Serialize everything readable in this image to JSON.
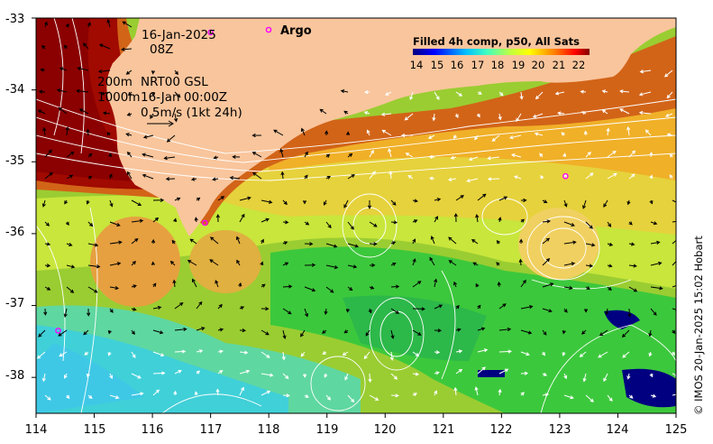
{
  "map": {
    "date": "16-Jan-2025",
    "time": "08Z",
    "depth_label": "200m",
    "depth2_label": "1000m",
    "product": "NRT00 GSL",
    "product_date": "16-Jan 00:00Z",
    "scale_label": "0.5m/s (1kt 24h)",
    "argo_label": "Argo",
    "credit": "© IMOS 20-Jan-2025 15:02 Hobart"
  },
  "colorbar": {
    "title": "Filled 4h comp, p50, All Sats",
    "labels": [
      "14",
      "15",
      "16",
      "17",
      "18",
      "19",
      "20",
      "21",
      "22"
    ],
    "colors": [
      "#00007f",
      "#0000ff",
      "#0080ff",
      "#00ffff",
      "#80ff80",
      "#ffff00",
      "#ff8000",
      "#ff0000",
      "#7f0000"
    ]
  },
  "axes": {
    "x_ticks": [
      "114",
      "115",
      "116",
      "117",
      "118",
      "119",
      "120",
      "121",
      "122",
      "123",
      "124",
      "125"
    ],
    "y_ticks": [
      "-33",
      "-34",
      "-35",
      "-36",
      "-37",
      "-38"
    ],
    "lon_range": [
      114,
      125
    ],
    "lat_range": [
      -38.5,
      -33
    ]
  },
  "argo_floats": [
    {
      "lon": 117.0,
      "lat": -33.2
    },
    {
      "lon": 116.9,
      "lat": -35.85
    },
    {
      "lon": 123.1,
      "lat": -35.2
    },
    {
      "lon": 114.38,
      "lat": -37.35
    }
  ],
  "colors": {
    "land": "#f9c59c",
    "argo": "#ff00ff"
  }
}
